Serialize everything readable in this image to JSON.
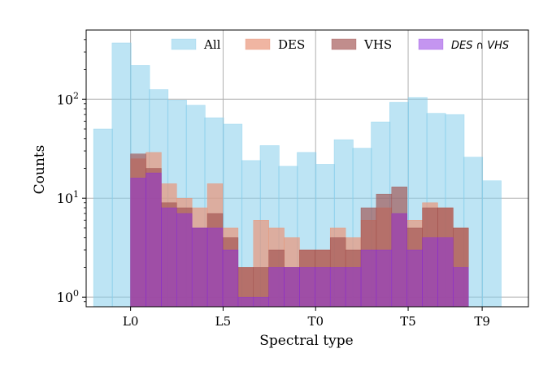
{
  "chart_data": {
    "type": "bar",
    "xlabel": "Spectral type",
    "ylabel": "Counts",
    "yscale": "log",
    "ylim": [
      0.8,
      500
    ],
    "yticks": [
      {
        "value": 1,
        "base": "10",
        "exp": "0"
      },
      {
        "value": 10,
        "base": "10",
        "exp": "1"
      },
      {
        "value": 100,
        "base": "10",
        "exp": "2"
      }
    ],
    "xlim": [
      -2.4,
      21.5
    ],
    "xticks": [
      {
        "value": 0,
        "label": "L0"
      },
      {
        "value": 5,
        "label": "L5"
      },
      {
        "value": 10,
        "label": "T0"
      },
      {
        "value": 15,
        "label": "T5"
      },
      {
        "value": 19,
        "label": "T9"
      }
    ],
    "grid": true,
    "legend_position": "top",
    "series": [
      {
        "name": "All",
        "color": "#87ceeb",
        "opacity": 0.55,
        "style": "serif",
        "x": [
          -2,
          -1,
          0,
          1,
          2,
          3,
          4,
          5,
          6,
          7,
          8,
          9,
          10,
          11,
          12,
          13,
          14,
          15,
          16,
          17,
          18,
          19,
          20
        ],
        "values": [
          50,
          370,
          220,
          125,
          98,
          87,
          65,
          56,
          24,
          34,
          21,
          29,
          22,
          39,
          32,
          59,
          93,
          104,
          72,
          70,
          26,
          15,
          0
        ],
        "bin_width": 1.03
      },
      {
        "name": "DES",
        "color": "#e9967a",
        "opacity": 0.7,
        "style": "serif",
        "x": [
          0,
          0.83,
          1.66,
          2.49,
          3.32,
          4.15,
          4.98,
          5.81,
          6.64,
          7.47,
          8.3,
          9.13,
          9.96,
          10.79,
          11.62,
          12.45,
          13.28,
          14.11,
          14.94,
          15.77,
          16.6,
          17.43,
          18.26
        ],
        "values": [
          25,
          29,
          14,
          10,
          8,
          14,
          5,
          2,
          6,
          5,
          4,
          3,
          3,
          5,
          4,
          6,
          8,
          7,
          6,
          9,
          8,
          5,
          0
        ],
        "bin_width": 0.83
      },
      {
        "name": "VHS",
        "color": "#a0504f",
        "opacity": 0.65,
        "style": "serif",
        "x": [
          0,
          0.83,
          1.66,
          2.49,
          3.32,
          4.15,
          4.98,
          5.81,
          6.64,
          7.47,
          8.3,
          9.13,
          9.96,
          10.79,
          11.62,
          12.45,
          13.28,
          14.11,
          14.94,
          15.77,
          16.6,
          17.43,
          18.26
        ],
        "values": [
          28,
          20,
          9,
          8,
          5,
          7,
          4,
          2,
          2,
          3,
          2,
          3,
          3,
          4,
          3,
          8,
          11,
          13,
          5,
          8,
          8,
          5,
          0
        ],
        "bin_width": 0.83
      },
      {
        "name": "DES ∩ VHS",
        "color": "#8a2be2",
        "opacity": 0.5,
        "style": "sans-italic",
        "x": [
          0,
          0.83,
          1.66,
          2.49,
          3.32,
          4.15,
          4.98,
          5.81,
          6.64,
          7.47,
          8.3,
          9.13,
          9.96,
          10.79,
          11.62,
          12.45,
          13.28,
          14.11,
          14.94,
          15.77,
          16.6,
          17.43,
          18.26
        ],
        "values": [
          16,
          18,
          8,
          7,
          5,
          5,
          3,
          1,
          1,
          2,
          2,
          2,
          2,
          2,
          2,
          3,
          3,
          7,
          3,
          4,
          4,
          2,
          0
        ],
        "bin_width": 0.83
      }
    ]
  }
}
